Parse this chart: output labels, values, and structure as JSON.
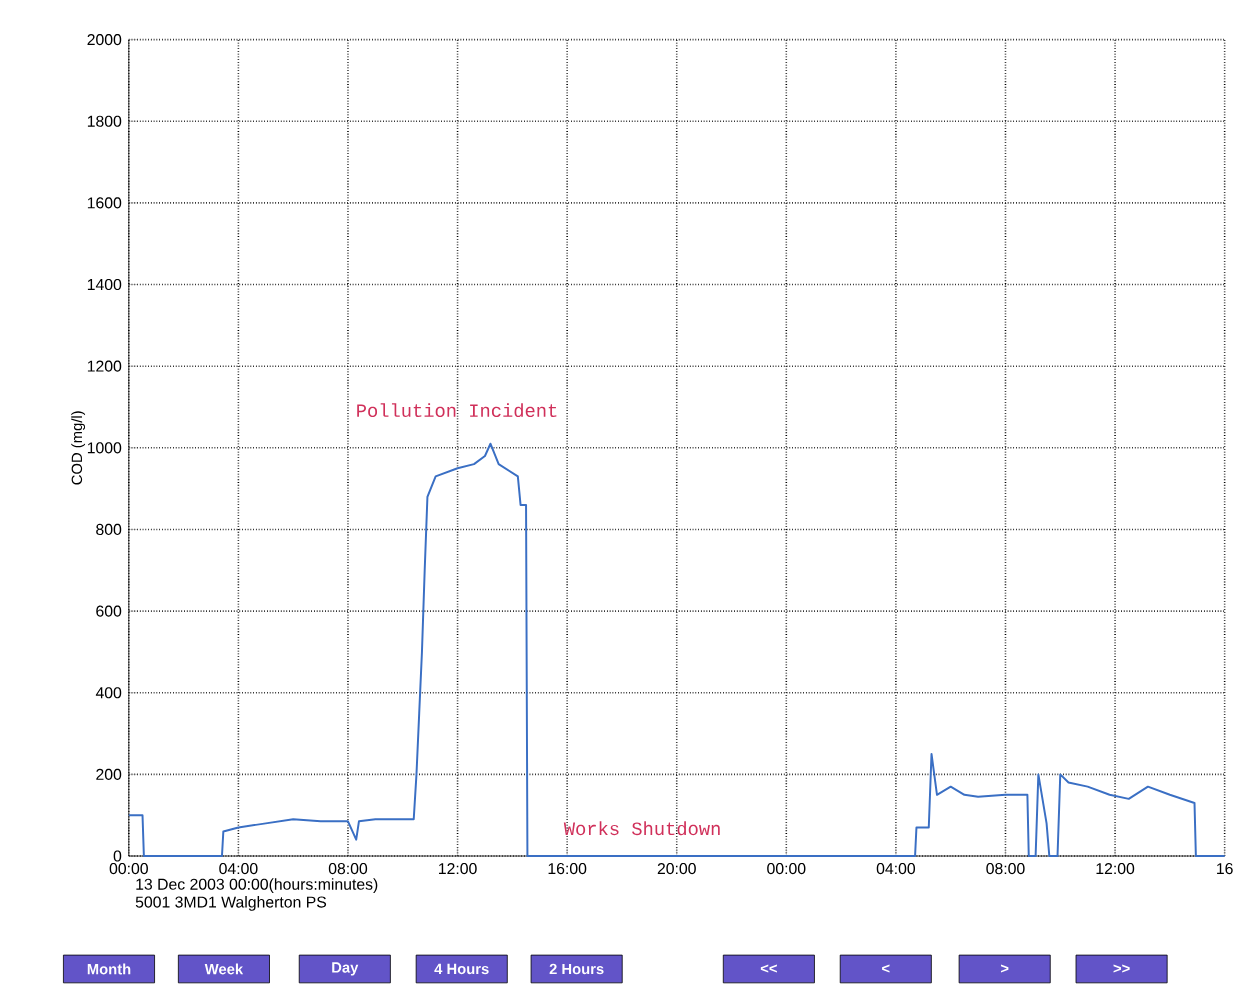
{
  "chart_data": {
    "type": "line",
    "ylabel": "COD (mg/l)",
    "xlabel": "13 Dec 2003 00:00(hours:minutes)",
    "subtitle": "5001 3MD1 Walgherton PS",
    "annotations": [
      "Pollution Incident",
      "Works Shutdown",
      "Month",
      "Week",
      "Day",
      "4 Hours",
      "2 Hours",
      "<<",
      "<",
      ">",
      ">>"
    ],
    "xlim": [
      "2003-12-13T00:00",
      "2003-12-14T16:00"
    ],
    "ylim": [
      0,
      2000
    ],
    "xticks": [
      {
        "value": "2003-12-13T00:00",
        "label": "00:00"
      },
      {
        "value": "2003-12-13T04:00",
        "label": "04:00"
      },
      {
        "value": "2003-12-13T08:00",
        "label": "08:00"
      },
      {
        "value": "2003-12-13T12:00",
        "label": "12:00"
      },
      {
        "value": "2003-12-13T16:00",
        "label": "16:00"
      },
      {
        "value": "2003-12-13T20:00",
        "label": "20:00"
      },
      {
        "value": "2003-12-14T00:00",
        "label": "00:00"
      },
      {
        "value": "2003-12-14T04:00",
        "label": "04:00"
      },
      {
        "value": "2003-12-14T08:00",
        "label": "08:00"
      },
      {
        "value": "2003-12-14T12:00",
        "label": "12:00"
      },
      {
        "value": "2003-12-14T16:00",
        "label": "16"
      }
    ],
    "yticks": [
      0,
      200,
      400,
      600,
      800,
      1000,
      1200,
      1400,
      1600,
      1800,
      2000
    ],
    "grid": true,
    "color": "#3a6fc4",
    "x": [
      "2003-12-13T00:00",
      "2003-12-13T00:30",
      "2003-12-13T00:33",
      "2003-12-13T03:24",
      "2003-12-13T03:27",
      "2003-12-13T04:00",
      "2003-12-13T05:00",
      "2003-12-13T06:00",
      "2003-12-13T07:00",
      "2003-12-13T08:00",
      "2003-12-13T08:18",
      "2003-12-13T08:24",
      "2003-12-13T09:00",
      "2003-12-13T10:24",
      "2003-12-13T10:30",
      "2003-12-13T10:36",
      "2003-12-13T10:42",
      "2003-12-13T10:48",
      "2003-12-13T10:54",
      "2003-12-13T11:12",
      "2003-12-13T12:00",
      "2003-12-13T12:36",
      "2003-12-13T13:00",
      "2003-12-13T13:12",
      "2003-12-13T13:30",
      "2003-12-13T14:12",
      "2003-12-13T14:18",
      "2003-12-13T14:30",
      "2003-12-13T14:33",
      "2003-12-14T04:42",
      "2003-12-14T04:45",
      "2003-12-14T05:12",
      "2003-12-14T05:18",
      "2003-12-14T05:30",
      "2003-12-14T06:00",
      "2003-12-14T06:30",
      "2003-12-14T07:00",
      "2003-12-14T08:00",
      "2003-12-14T08:48",
      "2003-12-14T08:51",
      "2003-12-14T09:06",
      "2003-12-14T09:12",
      "2003-12-14T09:30",
      "2003-12-14T09:36",
      "2003-12-14T09:54",
      "2003-12-14T10:00",
      "2003-12-14T10:18",
      "2003-12-14T11:00",
      "2003-12-14T11:48",
      "2003-12-14T12:30",
      "2003-12-14T13:12",
      "2003-12-14T14:00",
      "2003-12-14T14:54",
      "2003-12-14T14:57",
      "2003-12-14T16:00"
    ],
    "values": [
      100,
      100,
      0,
      0,
      60,
      70,
      80,
      90,
      85,
      85,
      40,
      85,
      90,
      90,
      200,
      350,
      500,
      700,
      880,
      930,
      950,
      960,
      980,
      1010,
      960,
      930,
      860,
      860,
      0,
      0,
      70,
      70,
      250,
      150,
      170,
      150,
      145,
      150,
      150,
      0,
      0,
      200,
      80,
      0,
      0,
      200,
      180,
      170,
      150,
      140,
      170,
      150,
      130,
      0,
      0
    ]
  }
}
